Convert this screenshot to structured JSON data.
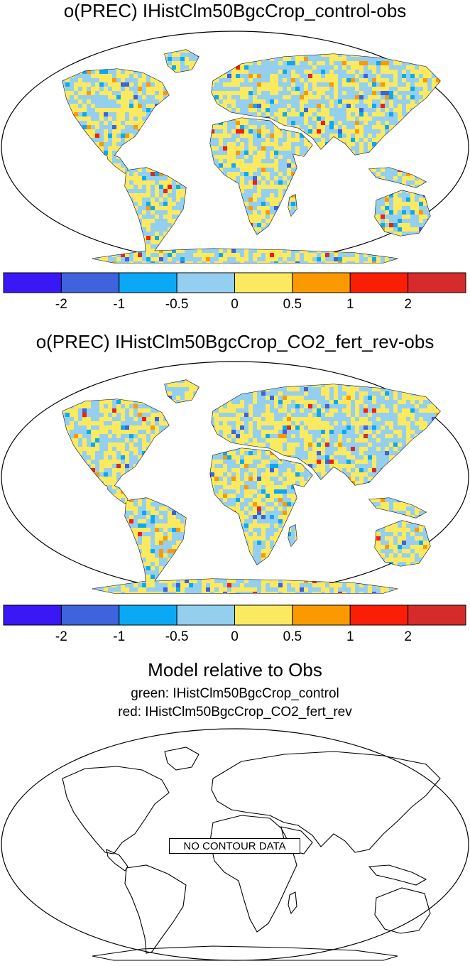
{
  "panels": [
    {
      "title": "o(PREC) IHistClm50BgcCrop_control-obs"
    },
    {
      "title": "o(PREC) IHistClm50BgcCrop_CO2_fert_rev-obs"
    },
    {
      "title": "Model relative to Obs",
      "legend_lines": [
        "green: IHistClm50BgcCrop_control",
        "red: IHistClm50BgcCrop_CO2_fert_rev"
      ],
      "message": "NO CONTOUR DATA"
    }
  ],
  "colorbar": {
    "colors": [
      "#3a17f5",
      "#3e63dc",
      "#0ba9f5",
      "#95cff0",
      "#fbea60",
      "#fb9a00",
      "#fb1e06",
      "#d62b2b"
    ],
    "tick_labels": [
      "-2",
      "-1",
      "-0.5",
      "0",
      "0.5",
      "1",
      "2"
    ]
  },
  "map_colors": {
    "ocean": "#ffffff",
    "coast": "#000000",
    "land_no_data": "#ffffff"
  }
}
